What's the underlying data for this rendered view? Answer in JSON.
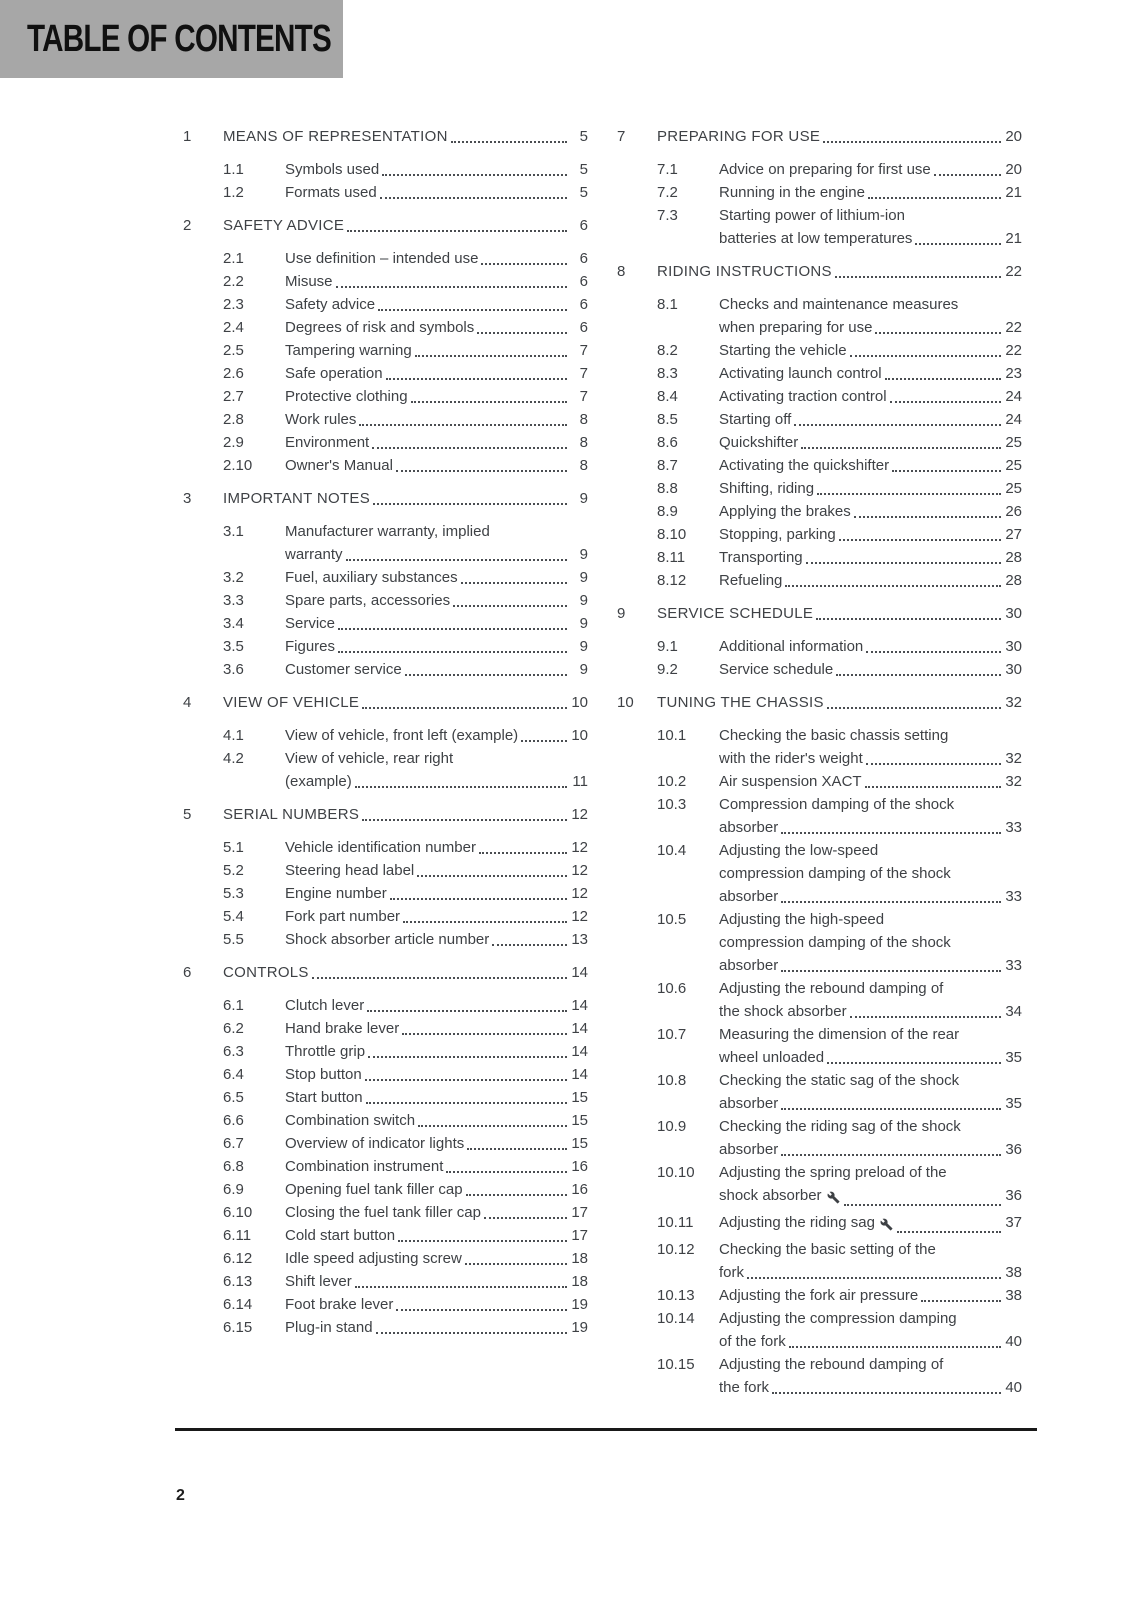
{
  "header": {
    "title": "TABLE OF CONTENTS"
  },
  "footer": {
    "page_number": "2"
  },
  "icons": {
    "wrench": "wrench-icon"
  },
  "toc": {
    "left_column": [
      {
        "num": "1",
        "title": "MEANS OF REPRESENTATION",
        "page": "5",
        "entries": [
          {
            "num": "1.1",
            "lines": [
              "Symbols used"
            ],
            "page": "5"
          },
          {
            "num": "1.2",
            "lines": [
              "Formats used"
            ],
            "page": "5"
          }
        ]
      },
      {
        "num": "2",
        "title": "SAFETY ADVICE",
        "page": "6",
        "entries": [
          {
            "num": "2.1",
            "lines": [
              "Use definition – intended use"
            ],
            "page": "6"
          },
          {
            "num": "2.2",
            "lines": [
              "Misuse"
            ],
            "page": "6"
          },
          {
            "num": "2.3",
            "lines": [
              "Safety advice"
            ],
            "page": "6"
          },
          {
            "num": "2.4",
            "lines": [
              "Degrees of risk and symbols"
            ],
            "page": "6"
          },
          {
            "num": "2.5",
            "lines": [
              "Tampering warning"
            ],
            "page": "7"
          },
          {
            "num": "2.6",
            "lines": [
              "Safe operation"
            ],
            "page": "7"
          },
          {
            "num": "2.7",
            "lines": [
              "Protective clothing"
            ],
            "page": "7"
          },
          {
            "num": "2.8",
            "lines": [
              "Work rules"
            ],
            "page": "8"
          },
          {
            "num": "2.9",
            "lines": [
              "Environment"
            ],
            "page": "8"
          },
          {
            "num": "2.10",
            "lines": [
              "Owner's Manual"
            ],
            "page": "8"
          }
        ]
      },
      {
        "num": "3",
        "title": "IMPORTANT NOTES",
        "page": "9",
        "entries": [
          {
            "num": "3.1",
            "lines": [
              "Manufacturer warranty, implied",
              "warranty"
            ],
            "page": "9"
          },
          {
            "num": "3.2",
            "lines": [
              "Fuel, auxiliary substances"
            ],
            "page": "9"
          },
          {
            "num": "3.3",
            "lines": [
              "Spare parts, accessories"
            ],
            "page": "9"
          },
          {
            "num": "3.4",
            "lines": [
              "Service"
            ],
            "page": "9"
          },
          {
            "num": "3.5",
            "lines": [
              "Figures"
            ],
            "page": "9"
          },
          {
            "num": "3.6",
            "lines": [
              "Customer service"
            ],
            "page": "9"
          }
        ]
      },
      {
        "num": "4",
        "title": "VIEW OF VEHICLE",
        "page": "10",
        "entries": [
          {
            "num": "4.1",
            "lines": [
              "View of vehicle, front left (example)"
            ],
            "page": "10"
          },
          {
            "num": "4.2",
            "lines": [
              "View of vehicle, rear right",
              "(example)"
            ],
            "page": "11"
          }
        ]
      },
      {
        "num": "5",
        "title": "SERIAL NUMBERS",
        "page": "12",
        "entries": [
          {
            "num": "5.1",
            "lines": [
              "Vehicle identification number"
            ],
            "page": "12"
          },
          {
            "num": "5.2",
            "lines": [
              "Steering head label"
            ],
            "page": "12"
          },
          {
            "num": "5.3",
            "lines": [
              "Engine number"
            ],
            "page": "12"
          },
          {
            "num": "5.4",
            "lines": [
              "Fork part number"
            ],
            "page": "12"
          },
          {
            "num": "5.5",
            "lines": [
              "Shock absorber article number"
            ],
            "page": "13"
          }
        ]
      },
      {
        "num": "6",
        "title": "CONTROLS",
        "page": "14",
        "entries": [
          {
            "num": "6.1",
            "lines": [
              "Clutch lever"
            ],
            "page": "14"
          },
          {
            "num": "6.2",
            "lines": [
              "Hand brake lever"
            ],
            "page": "14"
          },
          {
            "num": "6.3",
            "lines": [
              "Throttle grip"
            ],
            "page": "14"
          },
          {
            "num": "6.4",
            "lines": [
              "Stop button"
            ],
            "page": "14"
          },
          {
            "num": "6.5",
            "lines": [
              "Start button"
            ],
            "page": "15"
          },
          {
            "num": "6.6",
            "lines": [
              "Combination switch"
            ],
            "page": "15"
          },
          {
            "num": "6.7",
            "lines": [
              "Overview of indicator lights"
            ],
            "page": "15"
          },
          {
            "num": "6.8",
            "lines": [
              "Combination instrument"
            ],
            "page": "16"
          },
          {
            "num": "6.9",
            "lines": [
              "Opening fuel tank filler cap"
            ],
            "page": "16"
          },
          {
            "num": "6.10",
            "lines": [
              "Closing the fuel tank filler cap"
            ],
            "page": "17"
          },
          {
            "num": "6.11",
            "lines": [
              "Cold start button"
            ],
            "page": "17"
          },
          {
            "num": "6.12",
            "lines": [
              "Idle speed adjusting screw"
            ],
            "page": "18"
          },
          {
            "num": "6.13",
            "lines": [
              "Shift lever"
            ],
            "page": "18"
          },
          {
            "num": "6.14",
            "lines": [
              "Foot brake lever"
            ],
            "page": "19"
          },
          {
            "num": "6.15",
            "lines": [
              "Plug-in stand"
            ],
            "page": "19"
          }
        ]
      }
    ],
    "right_column": [
      {
        "num": "7",
        "title": "PREPARING FOR USE",
        "page": "20",
        "entries": [
          {
            "num": "7.1",
            "lines": [
              "Advice on preparing for first use"
            ],
            "page": "20"
          },
          {
            "num": "7.2",
            "lines": [
              "Running in the engine"
            ],
            "page": "21"
          },
          {
            "num": "7.3",
            "lines": [
              "Starting power of lithium-ion",
              "batteries at low temperatures"
            ],
            "page": "21"
          }
        ]
      },
      {
        "num": "8",
        "title": "RIDING INSTRUCTIONS",
        "page": "22",
        "entries": [
          {
            "num": "8.1",
            "lines": [
              "Checks and maintenance measures",
              "when preparing for use"
            ],
            "page": "22"
          },
          {
            "num": "8.2",
            "lines": [
              "Starting the vehicle"
            ],
            "page": "22"
          },
          {
            "num": "8.3",
            "lines": [
              "Activating launch control"
            ],
            "page": "23"
          },
          {
            "num": "8.4",
            "lines": [
              "Activating traction control"
            ],
            "page": "24"
          },
          {
            "num": "8.5",
            "lines": [
              "Starting off"
            ],
            "page": "24"
          },
          {
            "num": "8.6",
            "lines": [
              "Quickshifter"
            ],
            "page": "25"
          },
          {
            "num": "8.7",
            "lines": [
              "Activating the quickshifter"
            ],
            "page": "25"
          },
          {
            "num": "8.8",
            "lines": [
              "Shifting, riding"
            ],
            "page": "25"
          },
          {
            "num": "8.9",
            "lines": [
              "Applying the brakes"
            ],
            "page": "26"
          },
          {
            "num": "8.10",
            "lines": [
              "Stopping, parking"
            ],
            "page": "27"
          },
          {
            "num": "8.11",
            "lines": [
              "Transporting"
            ],
            "page": "28"
          },
          {
            "num": "8.12",
            "lines": [
              "Refueling"
            ],
            "page": "28"
          }
        ]
      },
      {
        "num": "9",
        "title": "SERVICE SCHEDULE",
        "page": "30",
        "entries": [
          {
            "num": "9.1",
            "lines": [
              "Additional information"
            ],
            "page": "30"
          },
          {
            "num": "9.2",
            "lines": [
              "Service schedule"
            ],
            "page": "30"
          }
        ]
      },
      {
        "num": "10",
        "title": "TUNING THE CHASSIS",
        "page": "32",
        "entries": [
          {
            "num": "10.1",
            "lines": [
              "Checking the basic chassis setting",
              "with the rider's weight"
            ],
            "page": "32"
          },
          {
            "num": "10.2",
            "lines": [
              "Air suspension XACT"
            ],
            "page": "32"
          },
          {
            "num": "10.3",
            "lines": [
              "Compression damping of the shock",
              "absorber"
            ],
            "page": "33"
          },
          {
            "num": "10.4",
            "lines": [
              "Adjusting the low-speed",
              "compression damping of the shock",
              "absorber"
            ],
            "page": "33"
          },
          {
            "num": "10.5",
            "lines": [
              "Adjusting the high-speed",
              "compression damping of the shock",
              "absorber"
            ],
            "page": "33"
          },
          {
            "num": "10.6",
            "lines": [
              "Adjusting the rebound damping of",
              "the shock absorber"
            ],
            "page": "34"
          },
          {
            "num": "10.7",
            "lines": [
              "Measuring the dimension of the rear",
              "wheel unloaded"
            ],
            "page": "35"
          },
          {
            "num": "10.8",
            "lines": [
              "Checking the static sag of the shock",
              "absorber"
            ],
            "page": "35"
          },
          {
            "num": "10.9",
            "lines": [
              "Checking the riding sag of the shock",
              "absorber"
            ],
            "page": "36"
          },
          {
            "num": "10.10",
            "lines": [
              "Adjusting the spring preload of the",
              "shock absorber"
            ],
            "icon": "wrench",
            "page": "36"
          },
          {
            "num": "10.11",
            "lines": [
              "Adjusting the riding sag"
            ],
            "icon": "wrench",
            "page": "37"
          },
          {
            "num": "10.12",
            "lines": [
              "Checking the basic setting of the",
              "fork"
            ],
            "page": "38"
          },
          {
            "num": "10.13",
            "lines": [
              "Adjusting the fork air pressure"
            ],
            "page": "38"
          },
          {
            "num": "10.14",
            "lines": [
              "Adjusting the compression damping",
              "of the fork"
            ],
            "page": "40"
          },
          {
            "num": "10.15",
            "lines": [
              "Adjusting the rebound damping of",
              "the fork"
            ],
            "page": "40"
          }
        ]
      }
    ]
  }
}
